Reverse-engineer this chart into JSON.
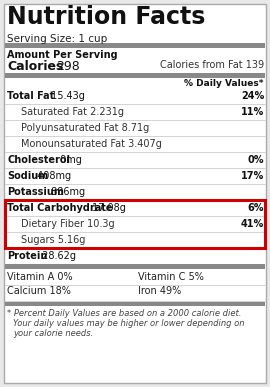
{
  "title": "Nutrition Facts",
  "serving_size": "Serving Size: 1 cup",
  "amount_per_serving": "Amount Per Serving",
  "calories_label": "Calories",
  "calories_value": "298",
  "calories_from_fat": "Calories from Fat 139",
  "daily_values_header": "% Daily Values*",
  "rows": [
    {
      "label": "Total Fat",
      "value": "15.43g",
      "pct": "24%",
      "bold": true,
      "indent": 0
    },
    {
      "label": "Saturated Fat",
      "value": "2.231g",
      "pct": "11%",
      "bold": false,
      "indent": 1
    },
    {
      "label": "Polyunsaturated Fat",
      "value": "8.71g",
      "pct": "",
      "bold": false,
      "indent": 1
    },
    {
      "label": "Monounsaturated Fat",
      "value": "3.407g",
      "pct": "",
      "bold": false,
      "indent": 1
    },
    {
      "label": "Cholesterol",
      "value": "0mg",
      "pct": "0%",
      "bold": true,
      "indent": 0
    },
    {
      "label": "Sodium",
      "value": "408mg",
      "pct": "17%",
      "bold": true,
      "indent": 0
    },
    {
      "label": "Potassium",
      "value": "886mg",
      "pct": "",
      "bold": true,
      "indent": 0
    },
    {
      "label": "Total Carbohydrate",
      "value": "17.08g",
      "pct": "6%",
      "bold": true,
      "indent": 0,
      "highlight": true
    },
    {
      "label": "Dietary Fiber",
      "value": "10.3g",
      "pct": "41%",
      "bold": false,
      "indent": 1,
      "highlight": true
    },
    {
      "label": "Sugars",
      "value": "5.16g",
      "pct": "",
      "bold": false,
      "indent": 1,
      "highlight": true
    },
    {
      "label": "Protein",
      "value": "28.62g",
      "pct": "",
      "bold": true,
      "indent": 0
    }
  ],
  "vitamins": [
    [
      "Vitamin A 0%",
      "Vitamin C 5%"
    ],
    [
      "Calcium 18%",
      "Iron 49%"
    ]
  ],
  "footnote_lines": [
    "* Percent Daily Values are based on a 2000 calorie diet.",
    "Your daily values may be higher or lower depending on",
    "your calorie needs."
  ],
  "bg_color": "#e8e8e8",
  "panel_color": "#ffffff",
  "highlight_border": "#cc0000",
  "thick_bar_color": "#888888",
  "thin_line_color": "#cccccc",
  "text_dark": "#111111",
  "text_normal": "#333333"
}
